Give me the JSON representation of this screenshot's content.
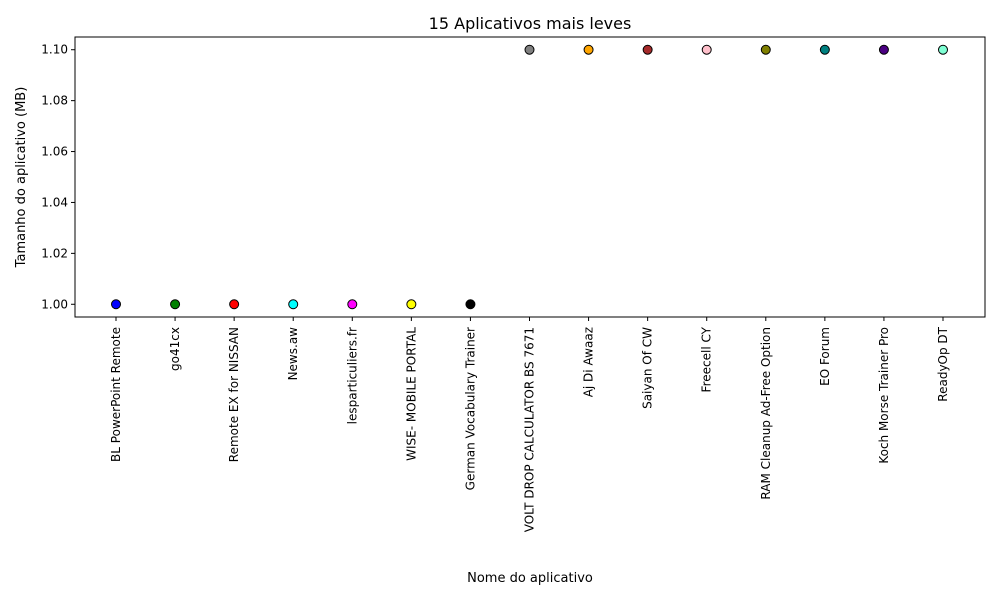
{
  "chart_data": {
    "type": "scatter",
    "title": "15 Aplicativos mais leves",
    "xlabel": "Nome do aplicativo",
    "ylabel": "Tamanho do aplicativo (MB)",
    "ylim": [
      0.995,
      1.105
    ],
    "yticks": [
      "1.00",
      "1.02",
      "1.04",
      "1.06",
      "1.08",
      "1.10"
    ],
    "ytick_values": [
      1.0,
      1.02,
      1.04,
      1.06,
      1.08,
      1.1
    ],
    "grid": false,
    "categories": [
      "BL PowerPoint Remote",
      "go41cx",
      "Remote EX for NISSAN",
      "News.aw",
      "lesparticuliers.fr",
      "WISE- MOBILE PORTAL",
      "German Vocabulary Trainer",
      "VOLT DROP CALCULATOR BS 7671",
      "Aj Di Awaaz",
      "Saiyan Of CW",
      "Freecell CY",
      "RAM Cleanup Ad-Free Option",
      "EO Forum",
      "Koch Morse Trainer Pro",
      "ReadyOp DT"
    ],
    "values": [
      1.0,
      1.0,
      1.0,
      1.0,
      1.0,
      1.0,
      1.0,
      1.1,
      1.1,
      1.1,
      1.1,
      1.1,
      1.1,
      1.1,
      1.1
    ],
    "colors": [
      "#0000ff",
      "#008000",
      "#ff0000",
      "#00ffff",
      "#ff00ff",
      "#ffff00",
      "#000000",
      "#808080",
      "#ffa500",
      "#a52a2a",
      "#ffc0cb",
      "#808000",
      "#008080",
      "#4b0082",
      "#7fffd4"
    ]
  }
}
